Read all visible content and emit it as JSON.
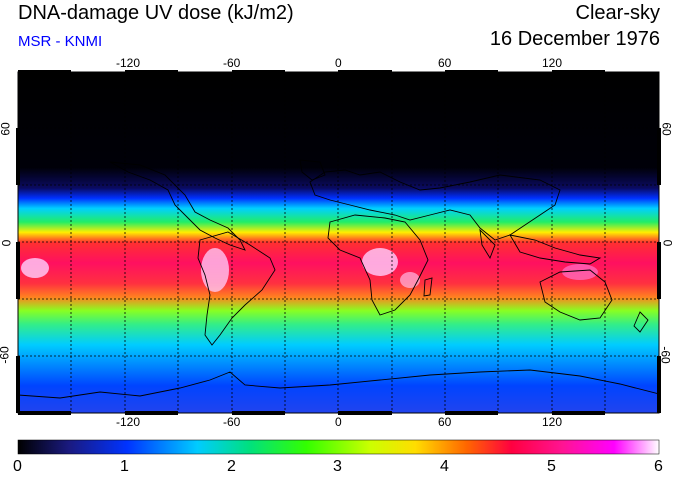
{
  "header": {
    "title": "DNA-damage UV dose (kJ/m2)",
    "source": "MSR - KNMI",
    "condition": "Clear-sky",
    "date": "16 December 1976"
  },
  "map": {
    "lon_ticks": [
      "-120",
      "-60",
      "0",
      "60",
      "120"
    ],
    "lat_ticks": [
      "60",
      "0",
      "-60"
    ],
    "colors": {
      "frame": "#000000",
      "grid": "#000000",
      "coast": "#000000"
    }
  },
  "colorbar": {
    "labels": [
      "0",
      "1",
      "2",
      "3",
      "4",
      "5",
      "6"
    ],
    "stops": [
      "#000000",
      "#1a1a80",
      "#0033ff",
      "#00ccff",
      "#00e080",
      "#33ff00",
      "#ccff00",
      "#ffdd00",
      "#ff6600",
      "#ff0040",
      "#ff1493",
      "#ff00ff",
      "#ffffff"
    ]
  }
}
